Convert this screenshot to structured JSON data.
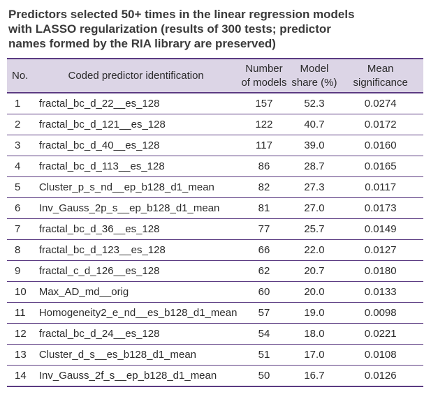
{
  "caption": {
    "line1": "Predictors selected 50+ times in the linear regression models",
    "line2": "with LASSO regularization (results of 300 tests; predictor",
    "line3": "names formed by the RIA library are preserved)"
  },
  "table": {
    "headers": {
      "no": "No.",
      "id": "Coded predictor identification",
      "num_line1": "Number",
      "num_line2": "of models",
      "share_line1": "Model",
      "share_line2": "share (%)",
      "sig_line1": "Mean",
      "sig_line2": "significance"
    },
    "rows": [
      {
        "no": "1",
        "id": "fractal_bc_d_22__es_128",
        "num": "157",
        "share": "52.3",
        "sig": "0.0274"
      },
      {
        "no": "2",
        "id": "fractal_bc_d_121__es_128",
        "num": "122",
        "share": "40.7",
        "sig": "0.0172"
      },
      {
        "no": "3",
        "id": "fractal_bc_d_40__es_128",
        "num": "117",
        "share": "39.0",
        "sig": "0.0160"
      },
      {
        "no": "4",
        "id": "fractal_bc_d_113__es_128",
        "num": "86",
        "share": "28.7",
        "sig": "0.0165"
      },
      {
        "no": "5",
        "id": "Cluster_p_s_nd__ep_b128_d1_mean",
        "num": "82",
        "share": "27.3",
        "sig": "0.0117"
      },
      {
        "no": "6",
        "id": "Inv_Gauss_2p_s__ep_b128_d1_mean",
        "num": "81",
        "share": "27.0",
        "sig": "0.0173"
      },
      {
        "no": "7",
        "id": "fractal_bc_d_36__es_128",
        "num": "77",
        "share": "25.7",
        "sig": "0.0149"
      },
      {
        "no": "8",
        "id": "fractal_bc_d_123__es_128",
        "num": "66",
        "share": "22.0",
        "sig": "0.0127"
      },
      {
        "no": "9",
        "id": "fractal_c_d_126__es_128",
        "num": "62",
        "share": "20.7",
        "sig": "0.0180"
      },
      {
        "no": "10",
        "id": "Max_AD_md__orig",
        "num": "60",
        "share": "20.0",
        "sig": "0.0133"
      },
      {
        "no": "11",
        "id": "Homogeneity2_e_nd__es_b128_d1_mean",
        "num": "57",
        "share": "19.0",
        "sig": "0.0098"
      },
      {
        "no": "12",
        "id": "fractal_bc_d_24__es_128",
        "num": "54",
        "share": "18.0",
        "sig": "0.0221"
      },
      {
        "no": "13",
        "id": "Cluster_d_s__es_b128_d1_mean",
        "num": "51",
        "share": "17.0",
        "sig": "0.0108"
      },
      {
        "no": "14",
        "id": "Inv_Gauss_2f_s__ep_b128_d1_mean",
        "num": "50",
        "share": "16.7",
        "sig": "0.0126"
      }
    ]
  }
}
